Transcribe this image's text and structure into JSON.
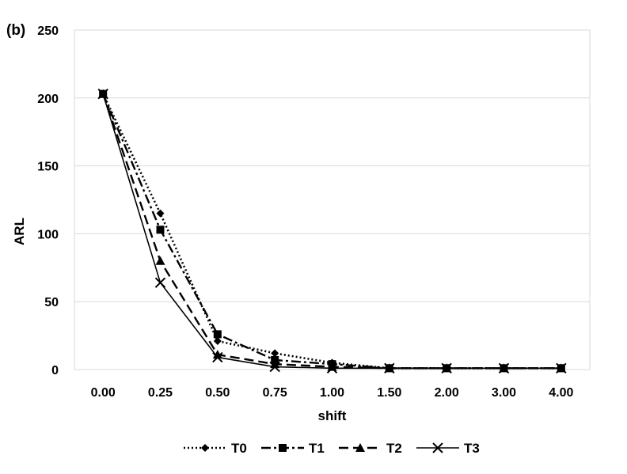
{
  "panel_label": "(b)",
  "chart_data": {
    "type": "line",
    "categories": [
      "0.00",
      "0.25",
      "0.50",
      "0.75",
      "1.00",
      "1.50",
      "2.00",
      "3.00",
      "4.00"
    ],
    "xlabel": "shift",
    "ylabel": "ARL",
    "ylim": [
      0,
      250
    ],
    "yticks": [
      0,
      50,
      100,
      150,
      200,
      250
    ],
    "grid": "horizontal",
    "legend_position": "bottom",
    "series": [
      {
        "name": "T0",
        "line_style": "dotted",
        "marker": "diamond",
        "values": [
          203,
          115,
          21,
          12,
          5,
          1,
          1,
          1,
          1
        ]
      },
      {
        "name": "T1",
        "line_style": "dash-dot",
        "marker": "square",
        "values": [
          203,
          103,
          26,
          7,
          4,
          1,
          1,
          1,
          1
        ]
      },
      {
        "name": "T2",
        "line_style": "dashed",
        "marker": "triangle",
        "values": [
          203,
          80,
          11,
          4,
          2,
          1,
          1,
          1,
          1
        ]
      },
      {
        "name": "T3",
        "line_style": "solid",
        "marker": "x",
        "values": [
          203,
          64,
          9,
          2,
          1,
          1,
          1,
          1,
          1
        ]
      }
    ],
    "colors": {
      "line": "#000000",
      "grid": "#d9d9d9",
      "plot_border": "#d9d9d9"
    }
  }
}
